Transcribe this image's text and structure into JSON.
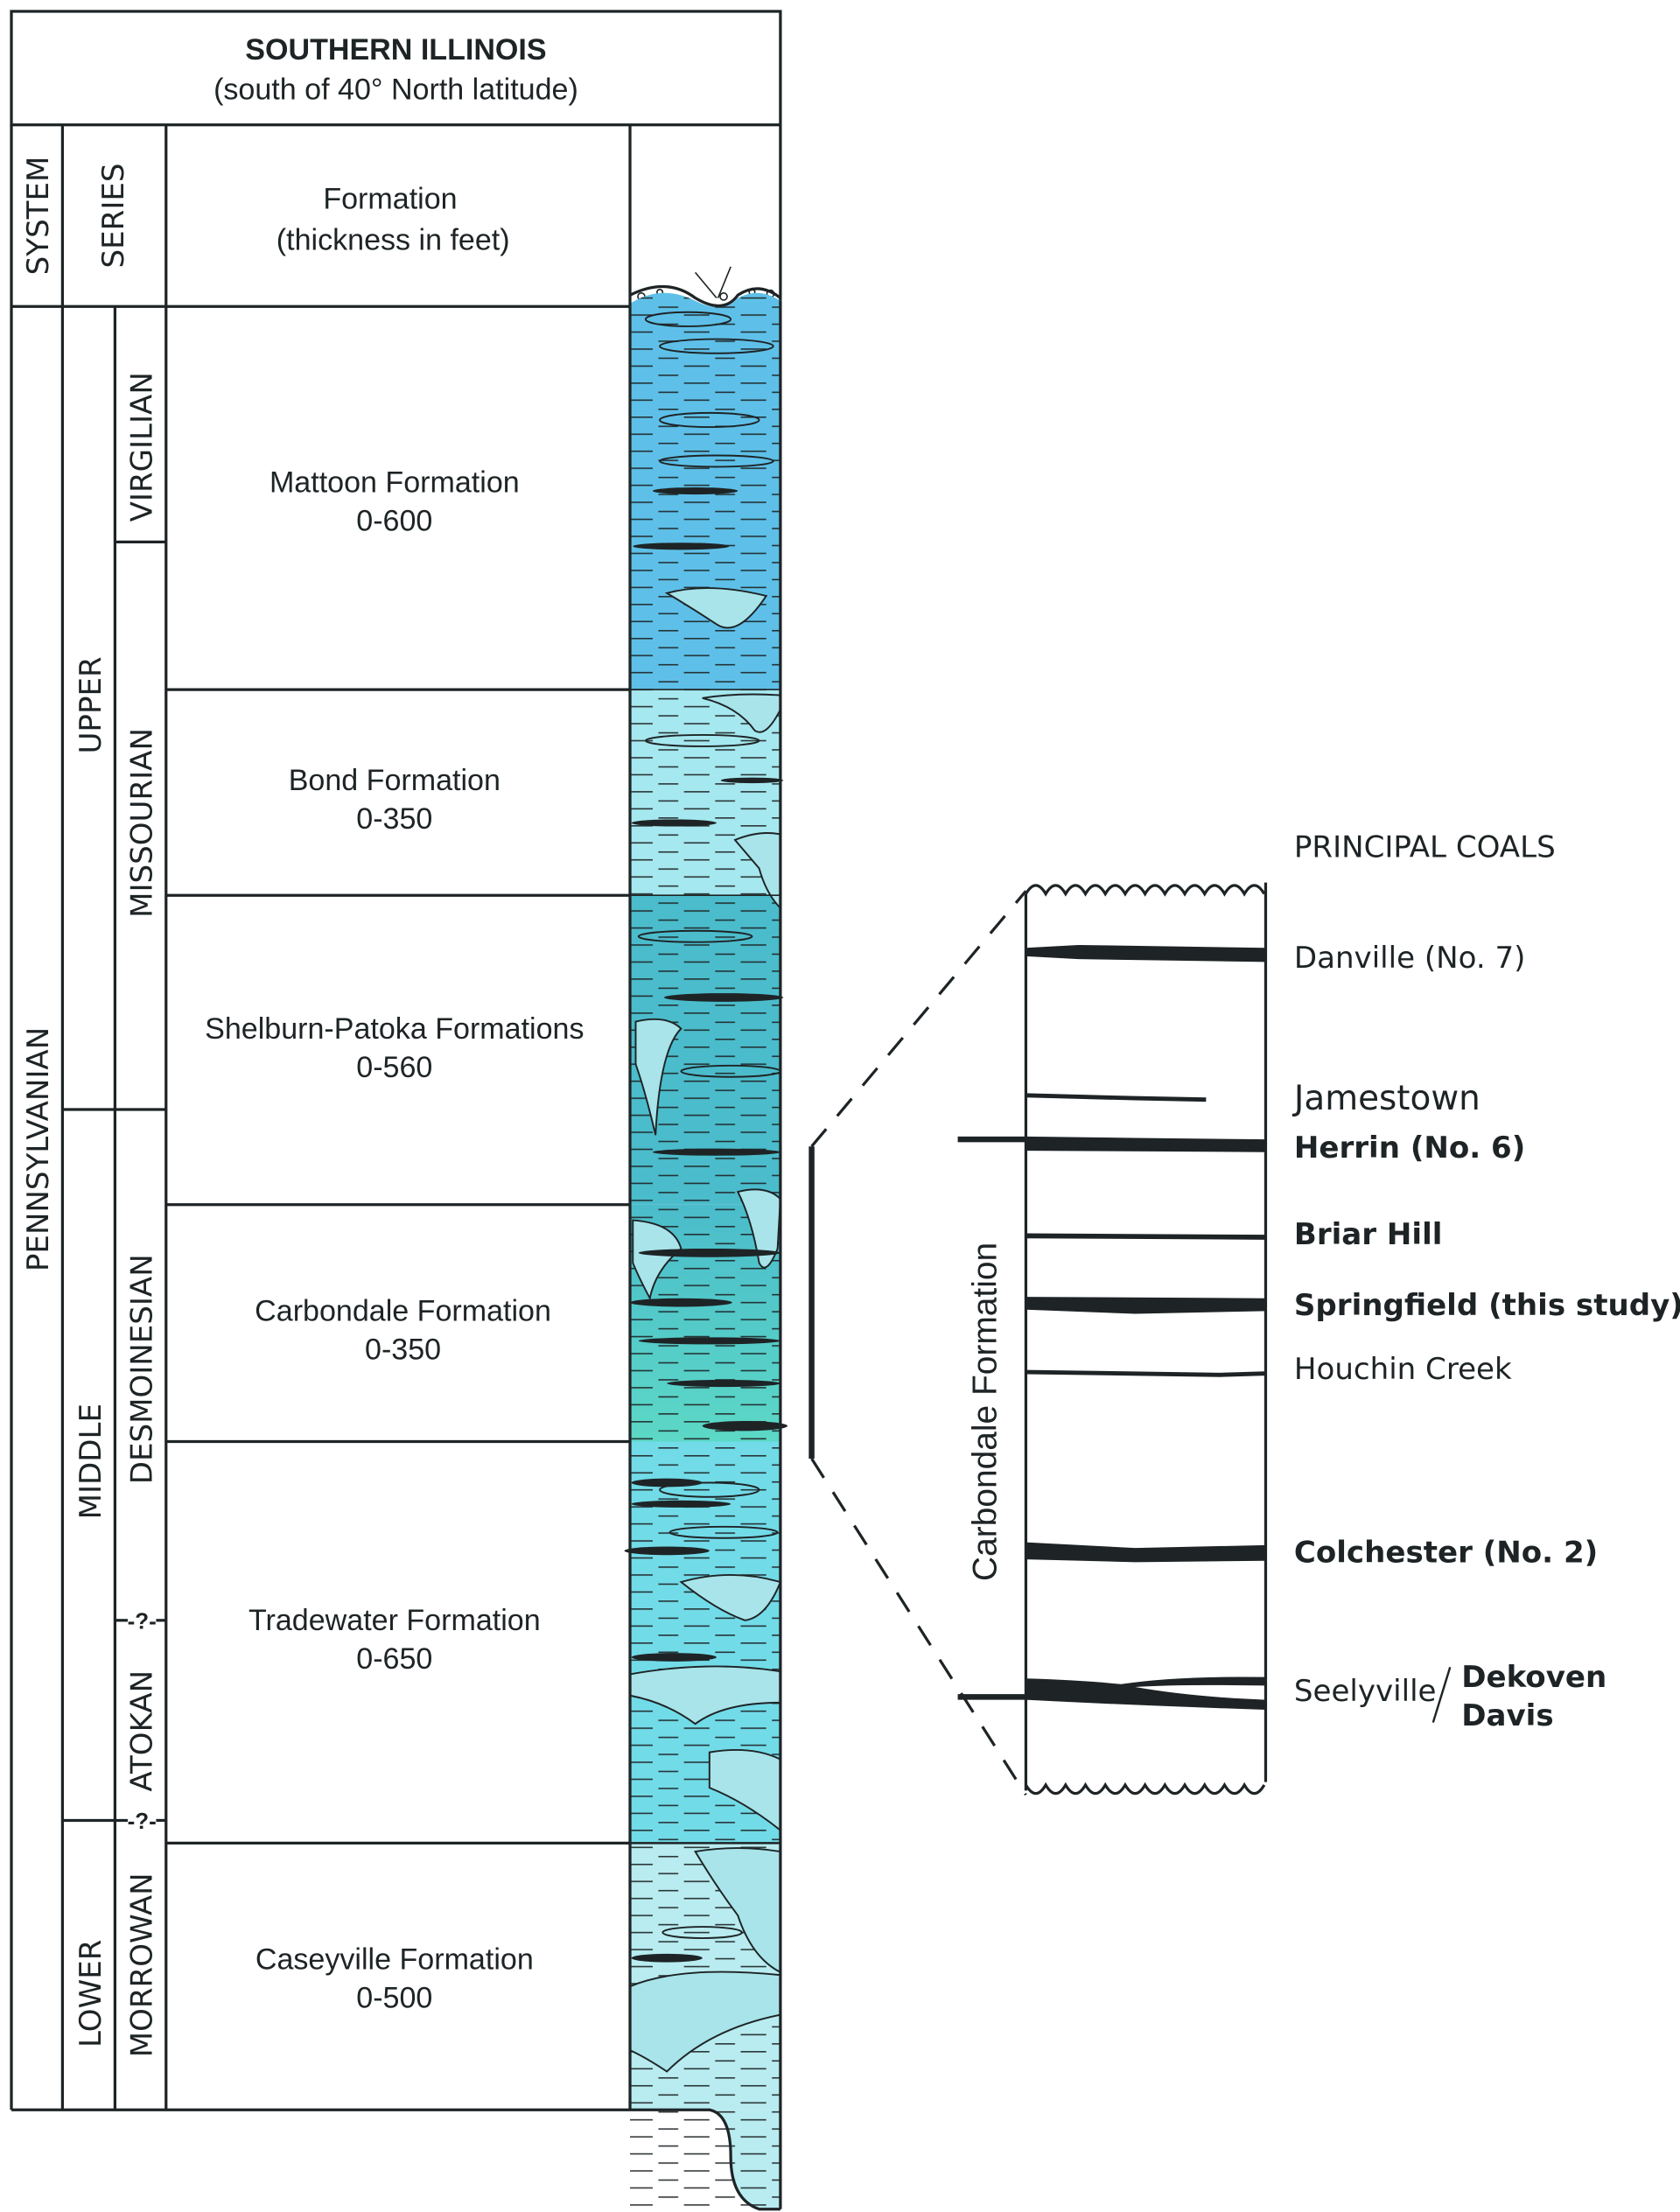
{
  "header": {
    "title": "SOUTHERN ILLINOIS",
    "subtitle": "(south of 40° North latitude)"
  },
  "columns": {
    "system": "SYSTEM",
    "series": "SERIES",
    "formation": "Formation",
    "formation_sub": "(thickness in feet)"
  },
  "system": "PENNSYLVANIAN",
  "series": [
    "UPPER",
    "MIDDLE",
    "LOWER"
  ],
  "stages": [
    "VIRGILIAN",
    "MISSOURIAN",
    "DESMOINESIAN",
    "ATOKAN",
    "MORROWAN"
  ],
  "uncertain_marker": "-?-",
  "formations": [
    {
      "name": "Mattoon Formation",
      "thickness": "0-600",
      "color": "#5ec0e8"
    },
    {
      "name": "Bond Formation",
      "thickness": "0-350",
      "color": "#a6e8ef"
    },
    {
      "name": "Shelburn-Patoka Formations",
      "thickness": "0-560",
      "color": "#4bbccb"
    },
    {
      "name": "Carbondale Formation",
      "thickness": "0-350",
      "color": "#5cd8c6"
    },
    {
      "name": "Tradewater Formation",
      "thickness": "0-650",
      "color": "#72dbe8"
    },
    {
      "name": "Caseyville Formation",
      "thickness": "0-500",
      "color": "#b8ecf0"
    }
  ],
  "inset": {
    "heading": "PRINCIPAL COALS",
    "formation_label": "Carbondale Formation",
    "coals": [
      {
        "name": "Danville (No. 7)",
        "bold": false
      },
      {
        "name": "Jamestown",
        "bold": false
      },
      {
        "name": "Herrin (No. 6)",
        "bold": true
      },
      {
        "name": "Briar Hill",
        "bold": true
      },
      {
        "name": "Springfield (this study)",
        "bold": true
      },
      {
        "name": "Houchin Creek",
        "bold": false
      },
      {
        "name": "Colchester (No. 2)",
        "bold": true
      }
    ],
    "seelyville": {
      "name": "Seelyville",
      "upper": "Dekoven",
      "lower": "Davis"
    }
  }
}
